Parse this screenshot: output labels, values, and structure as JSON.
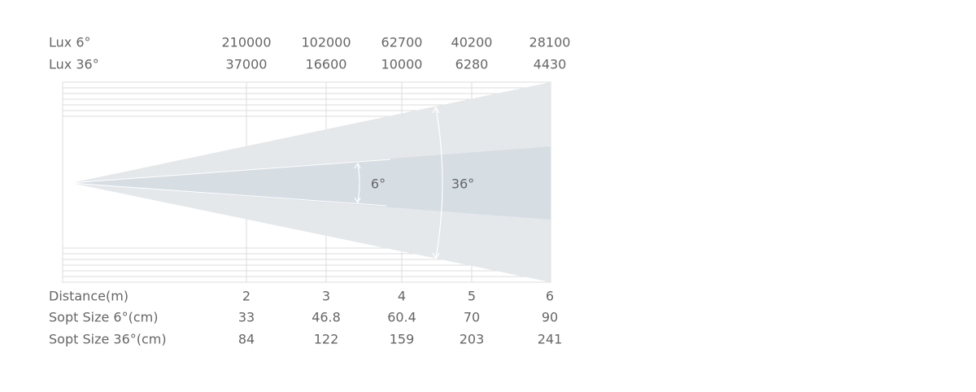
{
  "lux_rows": [
    {
      "label": "Lux 6°",
      "values": [
        210000,
        102000,
        62700,
        40200,
        28100
      ]
    },
    {
      "label": "Lux 36°",
      "values": [
        37000,
        16600,
        10000,
        6280,
        4430
      ]
    }
  ],
  "beam_labels": [
    "6°",
    "36°"
  ],
  "spec_rows": [
    {
      "label": "Distance(m)",
      "values": [
        2,
        3,
        4,
        5,
        6
      ]
    },
    {
      "label": "Sopt Size 6°(cm)",
      "values": [
        33,
        46.8,
        60.4,
        70,
        90
      ]
    },
    {
      "label": "Sopt Size 36°(cm)",
      "values": [
        84,
        122,
        159,
        203,
        241
      ]
    }
  ]
}
